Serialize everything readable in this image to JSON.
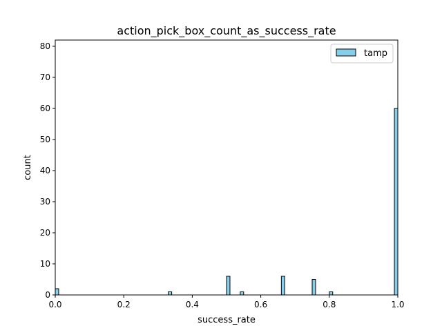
{
  "chart_data": {
    "type": "histogram",
    "title": "action_pick_box_count_as_success_rate",
    "xlabel": "success_rate",
    "ylabel": "count",
    "xlim": [
      0.0,
      1.0
    ],
    "ylim": [
      0,
      82
    ],
    "x_ticks": [
      "0.0",
      "0.2",
      "0.4",
      "0.6",
      "0.8",
      "1.0"
    ],
    "x_tick_values": [
      0.0,
      0.2,
      0.4,
      0.6,
      0.8,
      1.0
    ],
    "y_ticks": [
      "0",
      "10",
      "20",
      "30",
      "40",
      "50",
      "60",
      "70",
      "80"
    ],
    "y_tick_values": [
      0,
      10,
      20,
      30,
      40,
      50,
      60,
      70,
      80
    ],
    "bin_width": 0.01,
    "grid": false,
    "legend_position": "top-right",
    "series": [
      {
        "name": "tamp",
        "color": "#87ceeb",
        "edge_color": "#000000",
        "bins": [
          {
            "start": 0.0,
            "count": 2
          },
          {
            "start": 0.33,
            "count": 1
          },
          {
            "start": 0.5,
            "count": 6
          },
          {
            "start": 0.54,
            "count": 1
          },
          {
            "start": 0.66,
            "count": 6
          },
          {
            "start": 0.75,
            "count": 5
          },
          {
            "start": 0.8,
            "count": 1
          },
          {
            "start": 0.99,
            "count": 60
          }
        ]
      }
    ]
  }
}
